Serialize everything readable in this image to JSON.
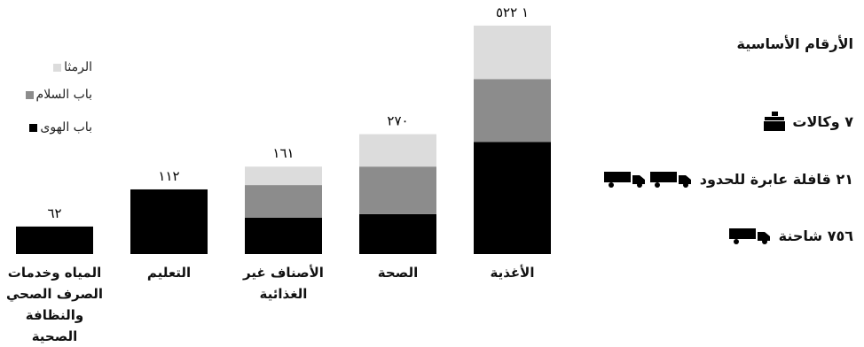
{
  "chart_data": {
    "type": "stacked_bar",
    "categories": [
      "المياه وخدمات الصرف الصحي والنظافة الصحية",
      "التعليم",
      "الأصناف غير الغذائية",
      "الصحة",
      "الأغذية"
    ],
    "series": [
      {
        "name": "باب الهوى",
        "color": "#000000",
        "values": [
          62,
          112,
          67,
          90,
          746
        ]
      },
      {
        "name": "باب السلام",
        "color": "#8c8c8c",
        "values": [
          0,
          0,
          60,
          107,
          420
        ]
      },
      {
        "name": "الرمثا",
        "color": "#dcdcdc",
        "values": [
          0,
          0,
          34,
          73,
          356
        ]
      }
    ],
    "totals": [
      62,
      112,
      161,
      270,
      1522
    ],
    "total_labels": [
      "٦٢",
      "١١٢",
      "١٦١",
      "٢٧٠",
      "١ ٥٢٢"
    ],
    "log_scale": true,
    "ylim": [
      40,
      1800
    ]
  },
  "key_figures": {
    "title": "الأرقام الأساسية",
    "items": [
      "٧ وكالات",
      "٢١ قافلة عابرة للحدود",
      "٧٥٦ شاحنة"
    ]
  }
}
